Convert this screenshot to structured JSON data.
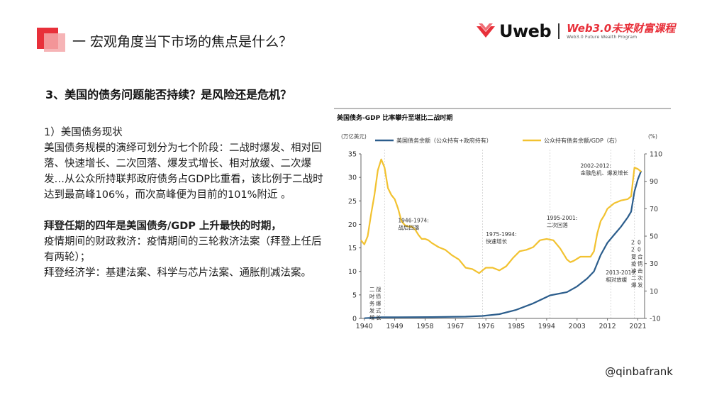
{
  "header": {
    "title": "一 宏观角度当下市场的焦点是什么？",
    "brand_name": "Uweb",
    "brand_right": "Web3.0未来财富课程",
    "brand_sub": "Web3.0 Future Wealth Program"
  },
  "section": {
    "heading": "3、美国的债务问题能否持续？是风险还是危机？"
  },
  "body": {
    "p1": "1）美国债务现状",
    "p2": "美国债务规模的演绎可划分为七个阶段：二战时爆发、相对回落、快速增长、二次回落、爆发式增长、相对放缓、二次爆发…从公众所持联邦政府债务占GDP比重看，该比例于二战时达到最高峰106%，而次高峰便为目前的101%附近 。",
    "p3": "拜登任期的四年是美国债务/GDP 上升最快的时期，",
    "p4": "疫情期间的财政救济：疫情期间的三轮救济法案（拜登上任后有两轮）；",
    "p5": "拜登经济学：基建法案、科学与芯片法案、通胀削减法案。"
  },
  "watermark": "@qinbafrank",
  "colors": {
    "accent_red": "#e8303a",
    "series_debt": "#2b5d8c",
    "series_ratio": "#f2c230"
  },
  "chart_data": {
    "type": "line",
    "title": "美国债务-GDP 比率攀升至堪比二战时期",
    "ylabel_left": "(万亿美元)",
    "ylabel_right": "(%)",
    "x_ticks": [
      "1940",
      "1949",
      "1958",
      "1967",
      "1976",
      "1985",
      "1994",
      "2003",
      "2012",
      "2021"
    ],
    "xlim": [
      1939,
      2023
    ],
    "ylim_left": [
      0,
      35
    ],
    "yticks_left": [
      "0",
      "5",
      "10",
      "15",
      "20",
      "25",
      "30",
      "35"
    ],
    "ylim_right": [
      -10,
      110
    ],
    "yticks_right": [
      "-10",
      "10",
      "30",
      "50",
      "70",
      "90",
      "110"
    ],
    "legend": "top",
    "grid": false,
    "series": [
      {
        "name": "美国债务余额（公众持有+政府持有）",
        "axis": "left",
        "color": "#2b5d8c",
        "x": [
          1940,
          1945,
          1950,
          1960,
          1970,
          1975,
          1980,
          1985,
          1990,
          1995,
          2000,
          2003,
          2006,
          2008,
          2010,
          2012,
          2014,
          2016,
          2018,
          2019,
          2020,
          2021,
          2022
        ],
        "y": [
          0.05,
          0.26,
          0.26,
          0.29,
          0.38,
          0.53,
          0.91,
          1.82,
          3.2,
          4.9,
          5.6,
          6.8,
          8.5,
          10.0,
          13.5,
          16.1,
          17.8,
          19.5,
          21.5,
          22.7,
          27.0,
          29.6,
          31.4
        ]
      },
      {
        "name": "公众持有债务余额/GDP（右）",
        "axis": "right",
        "color": "#f2c230",
        "x": [
          1939,
          1940,
          1941,
          1942,
          1943,
          1944,
          1945,
          1946,
          1947,
          1948,
          1949,
          1950,
          1951,
          1952,
          1953,
          1954,
          1955,
          1956,
          1957,
          1958,
          1959,
          1960,
          1962,
          1964,
          1966,
          1968,
          1970,
          1972,
          1974,
          1975,
          1976,
          1978,
          1980,
          1982,
          1984,
          1986,
          1988,
          1990,
          1992,
          1994,
          1996,
          1998,
          2000,
          2001,
          2002,
          2004,
          2006,
          2007,
          2008,
          2009,
          2010,
          2011,
          2012,
          2014,
          2016,
          2018,
          2019,
          2020,
          2021,
          2022
        ],
        "y": [
          47,
          44,
          50,
          66,
          80,
          98,
          106,
          100,
          85,
          80,
          77,
          70,
          61,
          58,
          57,
          57,
          55,
          51,
          48,
          48,
          47,
          45,
          42,
          40,
          36,
          33,
          27,
          26,
          23,
          25,
          27,
          27,
          25,
          28,
          34,
          39,
          40,
          42,
          47,
          48,
          47,
          41,
          33,
          31,
          32,
          35,
          35,
          35,
          39,
          52,
          61,
          65,
          70,
          74,
          76,
          77,
          79,
          100,
          99,
          97
        ]
      }
    ],
    "annotations": [
      {
        "text": "二战时债务爆发式增长",
        "x": 1941.5,
        "y_right": 10
      },
      {
        "text": "1946-1974:战后回落",
        "x": 1950,
        "y_right": 60
      },
      {
        "text": "1975-1994:快速增长",
        "x": 1976,
        "y_right": 50
      },
      {
        "text": "1995-2001:二次回落",
        "x": 1994,
        "y_right": 62
      },
      {
        "text": "2002-2012:金融危机、爆发增长",
        "x": 2004,
        "y_right": 100
      },
      {
        "text": "2013-2019:相对放缓",
        "x": 2011.5,
        "y_right": 22
      },
      {
        "text": "2020复合疫情冲击二次爆发",
        "x": 2019,
        "y_right": 44
      }
    ]
  }
}
